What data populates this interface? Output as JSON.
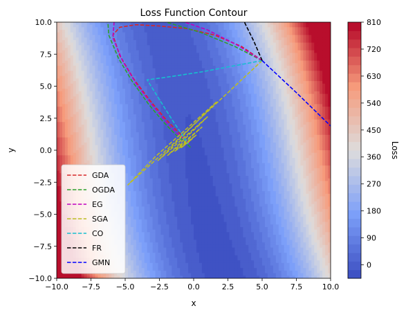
{
  "chart_data": {
    "type": "line",
    "title": "Loss Function Contour",
    "xlabel": "x",
    "ylabel": "y",
    "xlim": [
      -10,
      10
    ],
    "ylim": [
      -10,
      10
    ],
    "xticks": [
      -10,
      -7.5,
      -5,
      -2.5,
      0,
      2.5,
      5,
      7.5,
      10
    ],
    "xtick_labels": [
      "−10.0",
      "−7.5",
      "−5.0",
      "−2.5",
      "0.0",
      "2.5",
      "5.0",
      "7.5",
      "10.0"
    ],
    "yticks": [
      -10,
      -7.5,
      -5,
      -2.5,
      0,
      2.5,
      5,
      7.5,
      10
    ],
    "ytick_labels": [
      "−10.0",
      "−7.5",
      "−5.0",
      "−2.5",
      "0.0",
      "2.5",
      "5.0",
      "7.5",
      "10.0"
    ],
    "grid": false,
    "legend": "lower-left",
    "colorbar": {
      "label": "Loss",
      "min": -45,
      "max": 810,
      "ticks": [
        0,
        90,
        180,
        270,
        360,
        450,
        540,
        630,
        720,
        810
      ],
      "tick_labels": [
        "0",
        "90",
        "180",
        "270",
        "360",
        "450",
        "540",
        "630",
        "720",
        "810"
      ],
      "colormap": "coolwarm"
    },
    "series": [
      {
        "name": "GDA",
        "color": "#d62728",
        "style": "dashed",
        "x": [
          5,
          3.5,
          1.5,
          -0.5,
          -2.5,
          -4.2,
          -5.4,
          -5.9,
          -5.4,
          -4.4,
          -3.2,
          -2.1,
          -1.3,
          -0.8,
          -0.5
        ],
        "y": [
          7,
          8.1,
          9.0,
          9.5,
          9.7,
          9.8,
          9.6,
          9.0,
          7.4,
          5.6,
          3.9,
          2.5,
          1.6,
          1.1,
          0.9
        ]
      },
      {
        "name": "OGDA",
        "color": "#2ca02c",
        "style": "dashed",
        "x": [
          5,
          3.0,
          0.5,
          -2.0,
          -4.0,
          -5.5,
          -6.3,
          -6.2,
          -5.5,
          -4.5,
          -3.3,
          -2.2,
          -1.3,
          -0.6,
          -0.2
        ],
        "y": [
          7,
          8.1,
          9.2,
          10.0,
          10.6,
          11.0,
          10.6,
          9.0,
          7.2,
          5.4,
          3.6,
          2.2,
          1.2,
          0.6,
          0.2
        ]
      },
      {
        "name": "EG",
        "color": "#bf00bf",
        "style": "dashed",
        "x": [
          5,
          3.2,
          1.0,
          -1.5,
          -3.5,
          -5.0,
          -5.8,
          -5.9,
          -5.2,
          -4.2,
          -3.0,
          -2.0,
          -1.2,
          -0.6,
          -0.3
        ],
        "y": [
          7,
          8.2,
          9.4,
          10.3,
          10.8,
          10.9,
          10.2,
          8.8,
          7.0,
          5.2,
          3.5,
          2.2,
          1.3,
          0.8,
          0.5
        ]
      },
      {
        "name": "SGA",
        "color": "#bcbd22",
        "style": "dashed",
        "x": [
          5,
          3.0,
          0.6,
          -1.9,
          -4.8,
          -2.8,
          1.7,
          -2.6,
          1.0,
          -1.9,
          0.6,
          -1.4,
          0.2,
          -0.9,
          -0.1,
          -0.5
        ],
        "y": [
          7,
          5.0,
          2.6,
          0.1,
          -2.7,
          -0.5,
          3.8,
          -0.8,
          2.6,
          -0.4,
          1.8,
          -0.1,
          1.2,
          0.2,
          0.9,
          0.5
        ]
      },
      {
        "name": "CO",
        "color": "#17becf",
        "style": "dashed",
        "x": [
          5,
          3.0,
          0.5,
          -2.0,
          -3.4,
          -2.7,
          -2.0,
          -1.4,
          -0.9,
          -0.6,
          -0.4
        ],
        "y": [
          7,
          6.6,
          6.1,
          5.7,
          5.5,
          4.3,
          3.1,
          2.1,
          1.3,
          0.8,
          0.5
        ]
      },
      {
        "name": "FR",
        "color": "#000000",
        "style": "dashed",
        "x": [
          5,
          4.4,
          3.8,
          3.5
        ],
        "y": [
          7,
          8.5,
          9.8,
          10.5
        ]
      },
      {
        "name": "GMN",
        "color": "#0000ff",
        "style": "dashed",
        "x": [
          5,
          7.5,
          10
        ],
        "y": [
          7,
          4.5,
          1.9
        ]
      }
    ]
  }
}
